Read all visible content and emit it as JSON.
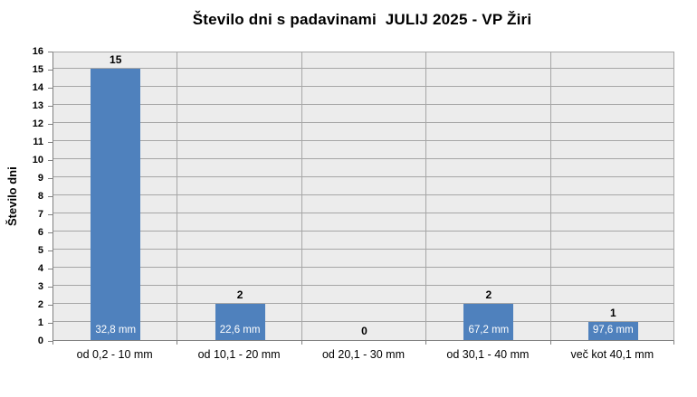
{
  "chart_data": {
    "type": "bar",
    "title": "Število dni s padavinami  JULIJ 2025 - VP Žiri",
    "ylabel": "Število dni",
    "xlabel": "",
    "categories": [
      "od 0,2 - 10 mm",
      "od 10,1 - 20 mm",
      "od 20,1 - 30 mm",
      "od 30,1 - 40 mm",
      "več kot 40,1 mm"
    ],
    "values": [
      15,
      2,
      0,
      2,
      1
    ],
    "value_labels": [
      "15",
      "2",
      "0",
      "2",
      "1"
    ],
    "inside_labels": [
      "32,8 mm",
      "22,6 mm",
      null,
      "67,2 mm",
      "97,6 mm"
    ],
    "ylim": [
      0,
      16
    ],
    "ytick_step": 1,
    "grid": true,
    "legend_position": "none",
    "colors": {
      "bar": "#4f81bd",
      "plot_bg": "#ececec",
      "gridline": "#a6a6a6",
      "axis": "#808080",
      "value_label": "#000000",
      "inside_label": "#ffffff",
      "background": "#ffffff"
    }
  }
}
